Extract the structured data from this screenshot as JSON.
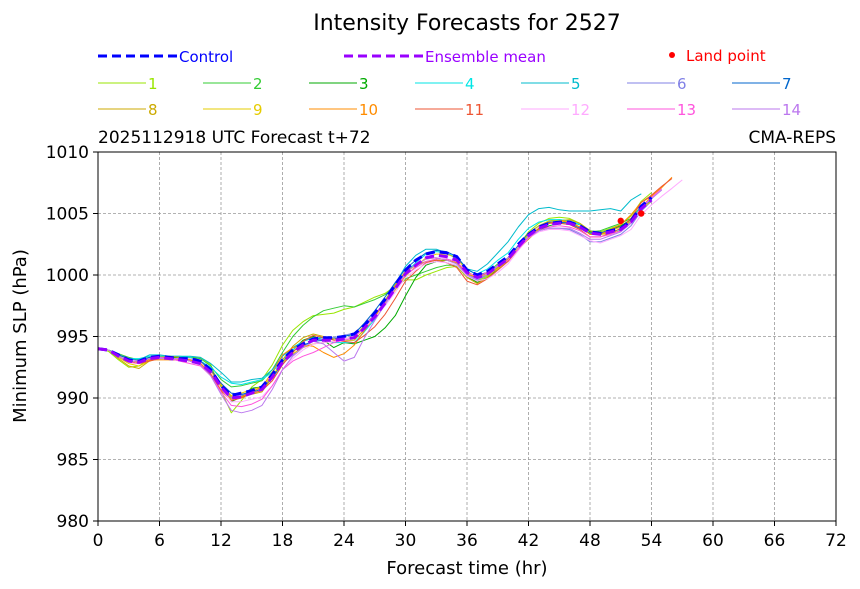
{
  "chart_data": {
    "type": "line",
    "title": "Intensity Forecasts for 2527",
    "subtitle_left": "2025112918 UTC Forecast t+72",
    "subtitle_right": "CMA-REPS",
    "xlabel": "Forecast time (hr)",
    "ylabel": "Minimum SLP (hPa)",
    "xlim": [
      0,
      72
    ],
    "ylim": [
      980,
      1010
    ],
    "xticks": [
      0,
      6,
      12,
      18,
      24,
      30,
      36,
      42,
      48,
      54,
      60,
      66,
      72
    ],
    "yticks": [
      980,
      985,
      990,
      995,
      1000,
      1005,
      1010
    ],
    "grid": true,
    "x": [
      0,
      1,
      2,
      3,
      4,
      5,
      6,
      7,
      8,
      9,
      10,
      11,
      12,
      13,
      14,
      15,
      16,
      17,
      18,
      19,
      20,
      21,
      22,
      23,
      24,
      25,
      26,
      27,
      28,
      29,
      30,
      31,
      32,
      33,
      34,
      35,
      36,
      37,
      38,
      39,
      40,
      41,
      42,
      43,
      44,
      45,
      46,
      47,
      48,
      49,
      50,
      51,
      52,
      53,
      54
    ],
    "control": {
      "name": "Control",
      "color": "#0000ff",
      "values": [
        994.0,
        993.9,
        993.5,
        993.1,
        993.0,
        993.3,
        993.4,
        993.3,
        993.2,
        993.2,
        993.0,
        992.3,
        991.0,
        990.2,
        990.4,
        990.6,
        990.9,
        991.9,
        993.1,
        993.9,
        994.4,
        994.8,
        994.9,
        994.9,
        995.0,
        995.2,
        995.9,
        996.9,
        998.0,
        999.2,
        1000.4,
        1001.2,
        1001.7,
        1001.9,
        1001.8,
        1001.5,
        1000.4,
        1000.0,
        1000.3,
        1000.9,
        1001.5,
        1002.5,
        1003.3,
        1003.9,
        1004.2,
        1004.3,
        1004.3,
        1004.0,
        1003.5,
        1003.4,
        1003.6,
        1003.8,
        1004.4,
        1005.6,
        1006.3
      ]
    },
    "ensemble_mean": {
      "name": "Ensemble mean",
      "color": "#9900ff",
      "values": [
        994.0,
        993.9,
        993.4,
        993.0,
        992.9,
        993.2,
        993.3,
        993.2,
        993.1,
        993.0,
        992.8,
        992.1,
        990.9,
        990.0,
        990.1,
        990.4,
        990.7,
        991.7,
        992.9,
        993.7,
        994.3,
        994.7,
        994.7,
        994.7,
        994.8,
        994.9,
        995.7,
        996.6,
        997.7,
        998.9,
        1000.1,
        1000.8,
        1001.4,
        1001.6,
        1001.5,
        1001.2,
        1000.2,
        999.8,
        1000.1,
        1000.7,
        1001.3,
        1002.3,
        1003.2,
        1003.8,
        1004.1,
        1004.2,
        1004.2,
        1003.9,
        1003.4,
        1003.3,
        1003.5,
        1003.7,
        1004.3,
        1005.4,
        1006.1
      ]
    },
    "land_point": {
      "name": "Land point",
      "color": "#ff0000",
      "points": [
        [
          51,
          1004.4
        ],
        [
          53,
          1005.0
        ]
      ]
    },
    "members": [
      {
        "name": "1",
        "color": "#99e600",
        "start": 0,
        "end": 54,
        "offsets": [
          0,
          -0.1,
          -0.3,
          -0.5,
          -0.3,
          0,
          0.1,
          0.2,
          0.1,
          0.3,
          0.5,
          0.6,
          -0.3,
          -1.2,
          -0.3,
          0.5,
          0.8,
          1.0,
          1.4,
          1.8,
          1.9,
          2.0,
          2.1,
          2.2,
          2.4,
          2.5,
          2.1,
          1.6,
          0.8,
          0.2,
          -0.5,
          -1.2,
          -1.4,
          -1.3,
          -0.9,
          -0.5,
          -0.4,
          -0.3,
          -0.2,
          -0.1,
          0,
          0.1,
          0.3,
          0.4,
          0.5,
          0.5,
          0.4,
          0.3,
          0.2,
          0.2,
          0.3,
          0.4,
          0.5,
          0.6,
          0.6
        ]
      },
      {
        "name": "2",
        "color": "#33cc33",
        "start": 0,
        "end": 54,
        "offsets": [
          0,
          0,
          0.2,
          0.3,
          0.2,
          0.1,
          0,
          0.1,
          0.2,
          0.3,
          0.4,
          0.5,
          0.6,
          0.9,
          0.9,
          0.8,
          0.7,
          0.6,
          0.8,
          1.3,
          1.6,
          1.9,
          2.4,
          2.6,
          2.7,
          2.5,
          2.0,
          1.4,
          0.7,
          0.1,
          -0.4,
          -0.8,
          -1.1,
          -1.0,
          -0.7,
          -0.4,
          -0.2,
          0,
          0.1,
          0.2,
          0.1,
          0,
          0.1,
          0.2,
          0.3,
          0.3,
          0.2,
          0.2,
          0.1,
          0.3,
          0.4,
          0.5,
          0.3,
          0.2,
          0.1
        ]
      },
      {
        "name": "3",
        "color": "#00aa00",
        "start": 0,
        "end": 54,
        "offsets": [
          0,
          0,
          0.1,
          0.1,
          0,
          -0.1,
          0,
          0.1,
          0.1,
          0.1,
          0.1,
          0.2,
          0,
          -0.3,
          0,
          0.4,
          0.2,
          -0.1,
          0,
          0.2,
          0.4,
          0.3,
          0,
          -0.6,
          -0.3,
          -0.5,
          -1.0,
          -1.6,
          -2.0,
          -2.2,
          -1.8,
          -1.0,
          -0.6,
          -0.5,
          -0.3,
          -0.2,
          -0.3,
          -0.4,
          -0.3,
          -0.2,
          -0.1,
          0,
          -0.1,
          -0.2,
          -0.1,
          0,
          0.1,
          0.2,
          0.1,
          0.1,
          0.2,
          0.3,
          0.2,
          0.1,
          0.1
        ]
      },
      {
        "name": "4",
        "color": "#00e6e6",
        "start": 0,
        "end": 54,
        "offsets": [
          0,
          0,
          0.1,
          0.2,
          0.3,
          0.2,
          0.1,
          0.2,
          0.3,
          0.3,
          0.2,
          0.4,
          0.8,
          1.2,
          1.0,
          0.9,
          0.8,
          0.4,
          0.2,
          0.2,
          0.3,
          0.2,
          0,
          -0.2,
          -0.3,
          -0.4,
          -0.3,
          -0.2,
          -0.1,
          0,
          0.1,
          0.2,
          0.3,
          0.3,
          0.3,
          0.2,
          0.2,
          0.3,
          0.4,
          0.5,
          0.5,
          0.6,
          0.6,
          0.5,
          0.4,
          0.3,
          0.2,
          0.2,
          0.2,
          0.1,
          0,
          0,
          0.1,
          0.2,
          0.1
        ]
      },
      {
        "name": "5",
        "color": "#00bbcc",
        "start": 0,
        "end": 53,
        "offsets": [
          0,
          0,
          0,
          0.1,
          0.2,
          0.3,
          0.2,
          0.2,
          0.3,
          0.4,
          0.5,
          0.7,
          1.2,
          1.3,
          1.2,
          1.1,
          0.9,
          0.6,
          0.5,
          0.4,
          0.3,
          0.2,
          0.2,
          0.2,
          0.3,
          0.2,
          0.1,
          0.1,
          0.2,
          0.4,
          0.6,
          0.8,
          0.7,
          0.5,
          0.3,
          0.1,
          0.3,
          0.5,
          0.8,
          1.1,
          1.4,
          1.6,
          1.7,
          1.6,
          1.4,
          1.1,
          1.0,
          1.3,
          1.8,
          2.0,
          1.9,
          1.5,
          1.8,
          1.2
        ]
      },
      {
        "name": "6",
        "color": "#8080e6",
        "start": 0,
        "end": 54,
        "offsets": [
          0,
          0,
          -0.1,
          0,
          0.1,
          0,
          -0.1,
          0,
          0.1,
          0,
          -0.1,
          -0.2,
          -0.1,
          0,
          0.1,
          0.2,
          0.1,
          0,
          -0.1,
          -0.2,
          -0.1,
          0,
          0.1,
          0.2,
          0.3,
          0.4,
          0.3,
          0.2,
          0.1,
          0,
          -0.1,
          -0.2,
          -0.3,
          -0.4,
          -0.5,
          -0.4,
          -0.3,
          -0.2,
          -0.1,
          0,
          0.1,
          0,
          -0.1,
          -0.2,
          -0.3,
          -0.4,
          -0.5,
          -0.6,
          -0.7,
          -0.6,
          -0.5,
          -0.4,
          -0.3,
          -0.2,
          -0.1
        ]
      },
      {
        "name": "7",
        "color": "#0066cc",
        "start": 0,
        "end": 54,
        "offsets": [
          0,
          0,
          0.1,
          0.2,
          0.1,
          0.1,
          0,
          -0.1,
          0,
          0.1,
          0.2,
          0.2,
          0.3,
          0.4,
          0.2,
          0.1,
          0,
          -0.1,
          0,
          0.1,
          0,
          -0.1,
          0,
          0.1,
          0.2,
          0.3,
          0.4,
          0.5,
          0.5,
          0.5,
          0.4,
          0.4,
          0.4,
          0.4,
          0.4,
          0.3,
          0.3,
          0.2,
          0.1,
          0,
          0.1,
          0.1,
          0.2,
          0.2,
          0.2,
          0.1,
          0,
          -0.1,
          0,
          0.1,
          0.2,
          0.2,
          0.1,
          0,
          0
        ]
      },
      {
        "name": "8",
        "color": "#ccaa00",
        "start": 0,
        "end": 54,
        "offsets": [
          0,
          0,
          -0.2,
          -0.4,
          -0.5,
          -0.2,
          0,
          0.2,
          0.2,
          0.1,
          0,
          0.1,
          0.2,
          0.1,
          0,
          -0.1,
          -0.2,
          0,
          0.2,
          0.5,
          0.6,
          0.5,
          0.3,
          0.1,
          -0.1,
          -0.2,
          -0.1,
          0,
          0.2,
          0.3,
          0.2,
          0,
          -0.3,
          -0.4,
          -0.3,
          -0.2,
          -0.4,
          -0.5,
          -0.3,
          -0.1,
          0,
          -0.2,
          -0.3,
          -0.1,
          0.1,
          0.2,
          0.3,
          0.3,
          0.2,
          0,
          -0.1,
          -0.1,
          0,
          0.1,
          0.3
        ]
      },
      {
        "name": "9",
        "color": "#e6cc00",
        "start": 0,
        "end": 54,
        "offsets": [
          0,
          0,
          -0.1,
          -0.2,
          -0.3,
          -0.2,
          -0.1,
          0,
          0.1,
          0.2,
          0.1,
          0,
          0.1,
          0.2,
          0.3,
          0.3,
          0.2,
          0.1,
          0,
          -0.1,
          -0.2,
          -0.3,
          -0.2,
          -0.1,
          0,
          0.1,
          0.2,
          0.1,
          0,
          -0.1,
          -0.2,
          -0.1,
          0,
          0.1,
          0.2,
          0.2,
          0.1,
          0,
          -0.1,
          -0.2,
          -0.1,
          0,
          0.1,
          0.2,
          0.3,
          0.2,
          0.1,
          0,
          -0.1,
          0,
          0.1,
          0.2,
          0.1,
          0,
          -0.1
        ]
      },
      {
        "name": "10",
        "color": "#ff8c00",
        "start": 0,
        "end": 56,
        "offsets": [
          0,
          0,
          0,
          0.1,
          0,
          -0.1,
          -0.2,
          -0.1,
          0,
          0.1,
          0,
          -0.1,
          -0.2,
          -0.1,
          0,
          0.1,
          0.2,
          0.4,
          0.6,
          0.4,
          0,
          -0.5,
          -1.0,
          -1.4,
          -1.2,
          -0.6,
          -0.2,
          0,
          0.1,
          0.2,
          0.1,
          0,
          -0.1,
          -0.2,
          -0.3,
          -0.2,
          -0.1,
          0,
          0.1,
          0,
          -0.1,
          -0.2,
          -0.1,
          0,
          0.1,
          0.2,
          0.1,
          0,
          -0.1,
          0,
          0.2,
          0.4,
          0.6,
          0.5,
          0.3,
          0.4,
          0.7
        ]
      },
      {
        "name": "11",
        "color": "#ee5533",
        "start": 0,
        "end": 56,
        "offsets": [
          0,
          0,
          0,
          0,
          -0.1,
          -0.2,
          -0.1,
          0,
          0.1,
          0,
          -0.1,
          -0.2,
          -0.3,
          -0.2,
          -0.1,
          0,
          -0.1,
          -0.3,
          -0.2,
          0,
          0.3,
          0.4,
          0.2,
          0,
          -0.2,
          -0.4,
          -0.6,
          -0.8,
          -0.9,
          -0.8,
          -0.6,
          -0.5,
          -0.4,
          -0.4,
          -0.5,
          -0.6,
          -0.7,
          -0.6,
          -0.4,
          -0.3,
          -0.2,
          -0.2,
          -0.1,
          0,
          0.1,
          0,
          -0.1,
          -0.2,
          -0.3,
          -0.2,
          -0.1,
          0.1,
          0.3,
          0.5,
          0.4,
          0.5,
          0.6
        ]
      },
      {
        "name": "12",
        "color": "#ffaaff",
        "start": 0,
        "end": 57,
        "offsets": [
          0,
          0,
          0,
          0.1,
          0.1,
          0,
          -0.1,
          0,
          0.1,
          0.2,
          0.1,
          0,
          -0.1,
          -0.3,
          -0.4,
          -0.5,
          -0.6,
          -0.7,
          -0.6,
          -0.5,
          -0.4,
          -0.3,
          -0.2,
          -0.1,
          0,
          0.1,
          0,
          -0.1,
          -0.2,
          -0.3,
          -0.3,
          -0.4,
          -0.5,
          -0.5,
          -0.5,
          -0.4,
          -0.3,
          -0.3,
          -0.4,
          -0.5,
          -0.4,
          -0.3,
          -0.2,
          -0.3,
          -0.4,
          -0.5,
          -0.6,
          -0.7,
          -0.6,
          -0.7,
          -0.6,
          -0.5,
          -0.6,
          -0.5,
          -0.4,
          -0.3,
          -0.2,
          0
        ]
      },
      {
        "name": "13",
        "color": "#ff55dd",
        "start": 0,
        "end": 55,
        "offsets": [
          0,
          0,
          0,
          -0.1,
          -0.1,
          0,
          0,
          0,
          -0.1,
          -0.2,
          -0.2,
          -0.3,
          -0.4,
          -0.6,
          -0.8,
          -0.9,
          -0.8,
          -0.7,
          -0.6,
          -0.7,
          -0.9,
          -1.0,
          -0.6,
          -0.2,
          -0.1,
          0,
          0.1,
          0.2,
          0.1,
          0,
          -0.1,
          -0.2,
          -0.3,
          -0.3,
          -0.2,
          -0.1,
          0,
          0.1,
          0.1,
          0,
          -0.1,
          -0.2,
          -0.2,
          -0.2,
          -0.2,
          -0.2,
          -0.3,
          -0.3,
          -0.3,
          -0.2,
          -0.2,
          -0.1,
          0,
          0.1,
          0.2,
          0.3
        ]
      },
      {
        "name": "14",
        "color": "#bb77ee",
        "start": 0,
        "end": 55,
        "offsets": [
          0,
          0,
          0,
          0,
          0.1,
          0,
          -0.1,
          0,
          0.1,
          0,
          -0.1,
          -0.3,
          -0.6,
          -1.0,
          -1.3,
          -1.4,
          -1.3,
          -1.0,
          -0.6,
          -0.3,
          -0.2,
          -0.1,
          -0.3,
          -1.0,
          -1.8,
          -1.6,
          -0.8,
          -0.3,
          -0.1,
          0,
          0.1,
          0,
          -0.1,
          -0.2,
          -0.3,
          -0.3,
          -0.2,
          -0.1,
          0,
          0.1,
          0.1,
          0,
          -0.1,
          -0.2,
          -0.3,
          -0.4,
          -0.4,
          -0.5,
          -0.5,
          -0.4,
          -0.3,
          -0.2,
          -0.1,
          0,
          0.1,
          0.2
        ]
      }
    ]
  }
}
